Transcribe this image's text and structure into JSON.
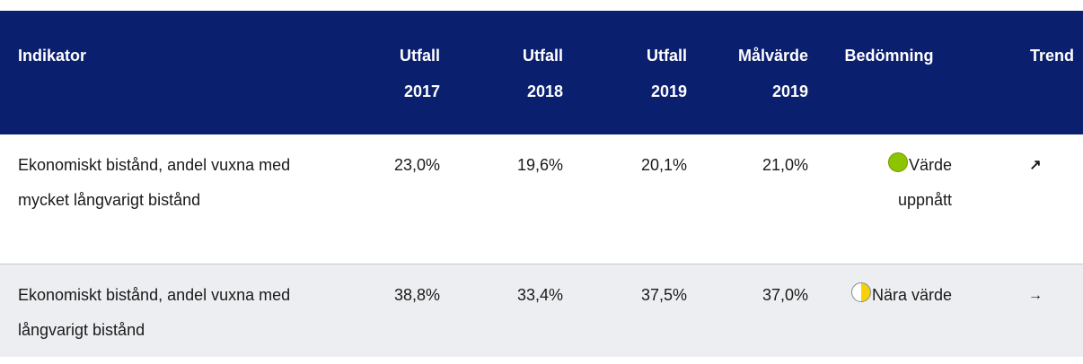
{
  "table": {
    "headers": [
      "Indikator",
      "Utfall 2017",
      "Utfall 2018",
      "Utfall 2019",
      "Målvärde 2019",
      "Bedömning",
      "Trend"
    ],
    "rows": [
      {
        "cells": [
          "Ekonomiskt bistånd, andel vuxna med mycket långvarigt bistånd",
          "23,0%",
          "19,6%",
          "20,1%",
          "21,0%",
          "Värde uppnått",
          "↗"
        ]
      },
      {
        "cells": [
          "Ekonomiskt bistånd, andel vuxna med långvarigt bistånd",
          "38,8%",
          "33,4%",
          "37,5%",
          "37,0%",
          "Nära värde",
          "→"
        ]
      }
    ]
  }
}
